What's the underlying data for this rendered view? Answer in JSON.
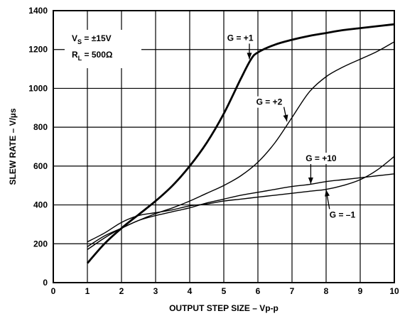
{
  "chart_data": {
    "type": "line",
    "title": "",
    "xlabel": "OUTPUT STEP SIZE – Vp-p",
    "ylabel": "SLEW RATE – V/µs",
    "xlim": [
      0,
      10
    ],
    "ylim": [
      0,
      1400
    ],
    "x_ticks": [
      "0",
      "1",
      "2",
      "3",
      "4",
      "5",
      "6",
      "7",
      "8",
      "9",
      "10"
    ],
    "y_ticks": [
      "0",
      "200",
      "400",
      "600",
      "800",
      "1000",
      "1200",
      "1400"
    ],
    "grid": true,
    "conditions": [
      {
        "main": "V",
        "sub": "S",
        "rest": " = ±15V"
      },
      {
        "main": "R",
        "sub": "L",
        "rest": " = 500Ω"
      }
    ],
    "series": [
      {
        "name": "G = +1",
        "stroke": "thick",
        "x": [
          1,
          1.5,
          2,
          2.5,
          3,
          3.5,
          4,
          4.5,
          5,
          5.5,
          5.8,
          6,
          6.5,
          7,
          7.5,
          8,
          8.5,
          9,
          9.5,
          10
        ],
        "y": [
          100,
          200,
          280,
          350,
          420,
          500,
          600,
          720,
          870,
          1050,
          1150,
          1185,
          1225,
          1250,
          1270,
          1285,
          1300,
          1310,
          1320,
          1330
        ]
      },
      {
        "name": "G = +2",
        "stroke": "thin",
        "x": [
          1,
          1.5,
          2,
          2.5,
          3,
          3.5,
          4,
          4.5,
          5,
          5.5,
          6,
          6.5,
          7,
          7.5,
          8,
          8.5,
          9,
          9.5,
          10
        ],
        "y": [
          170,
          230,
          280,
          320,
          355,
          385,
          420,
          460,
          500,
          550,
          620,
          720,
          850,
          980,
          1060,
          1110,
          1150,
          1190,
          1240
        ]
      },
      {
        "name": "G = +10",
        "stroke": "thin",
        "x": [
          1,
          1.5,
          2,
          2.5,
          3,
          3.5,
          4,
          4.5,
          5,
          5.5,
          6,
          6.5,
          7,
          7.5,
          8,
          8.5,
          9,
          9.5,
          10
        ],
        "y": [
          185,
          240,
          280,
          320,
          345,
          365,
          385,
          410,
          430,
          450,
          465,
          480,
          495,
          505,
          520,
          530,
          540,
          550,
          560
        ]
      },
      {
        "name": "G = –1",
        "stroke": "thin",
        "x": [
          1,
          1.5,
          2,
          2.5,
          3,
          3.5,
          4,
          4.5,
          5,
          5.5,
          6,
          6.5,
          7,
          7.5,
          8,
          8.5,
          9,
          9.5,
          10
        ],
        "y": [
          210,
          255,
          310,
          345,
          360,
          375,
          395,
          405,
          420,
          430,
          440,
          450,
          460,
          470,
          480,
          500,
          530,
          580,
          650
        ]
      }
    ],
    "labels": [
      {
        "text": "G = +1",
        "x": 5.1,
        "y": 1245,
        "arrow_to": [
          5.75,
          1150
        ]
      },
      {
        "text": "G = +2",
        "x": 5.95,
        "y": 915,
        "arrow_to": [
          6.85,
          830
        ]
      },
      {
        "text": "G = +10",
        "x": 7.4,
        "y": 625,
        "arrow_to": [
          7.55,
          508
        ]
      },
      {
        "text": "G = –1",
        "x": 8.1,
        "y": 335,
        "arrow_to": [
          8.0,
          478
        ]
      }
    ]
  }
}
